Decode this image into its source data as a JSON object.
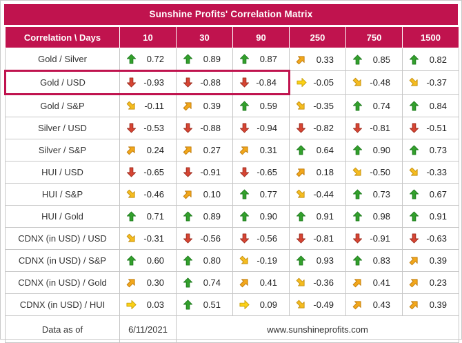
{
  "colors": {
    "header_bg": "#C0134E",
    "grid": "#c6c6c6",
    "arrow_up": "#33A02C",
    "arrow_down": "#D64533",
    "arrow_diag_up": "#F2A71B",
    "arrow_diag_down": "#F5BC1F",
    "arrow_right": "#FCD116",
    "highlight_border": "#C0134E"
  },
  "footer": {
    "label": "Data as of",
    "date": "6/11/2021",
    "website": "www.sunshineprofits.com"
  },
  "highlight": {
    "pair": "Gold / USD",
    "through_column": "90"
  },
  "chart_data": {
    "type": "table",
    "title": "Sunshine Profits' Correlation Matrix",
    "corner_label": "Correlation \\ Days",
    "day_columns": [
      "10",
      "30",
      "90",
      "250",
      "750",
      "1500"
    ],
    "rows": [
      {
        "pair": "Gold / Silver",
        "cells": [
          {
            "trend": "up",
            "value": 0.72
          },
          {
            "trend": "up",
            "value": 0.89
          },
          {
            "trend": "up",
            "value": 0.87
          },
          {
            "trend": "diag-up",
            "value": 0.33
          },
          {
            "trend": "up",
            "value": 0.85
          },
          {
            "trend": "up",
            "value": 0.82
          }
        ]
      },
      {
        "pair": "Gold / USD",
        "cells": [
          {
            "trend": "down",
            "value": -0.93
          },
          {
            "trend": "down",
            "value": -0.88
          },
          {
            "trend": "down",
            "value": -0.84
          },
          {
            "trend": "right",
            "value": -0.05
          },
          {
            "trend": "diag-down",
            "value": -0.48
          },
          {
            "trend": "diag-down",
            "value": -0.37
          }
        ]
      },
      {
        "pair": "Gold / S&P",
        "cells": [
          {
            "trend": "diag-down",
            "value": -0.11
          },
          {
            "trend": "diag-up",
            "value": 0.39
          },
          {
            "trend": "up",
            "value": 0.59
          },
          {
            "trend": "diag-down",
            "value": -0.35
          },
          {
            "trend": "up",
            "value": 0.74
          },
          {
            "trend": "up",
            "value": 0.84
          }
        ]
      },
      {
        "pair": "Silver / USD",
        "cells": [
          {
            "trend": "down",
            "value": -0.53
          },
          {
            "trend": "down",
            "value": -0.88
          },
          {
            "trend": "down",
            "value": -0.94
          },
          {
            "trend": "down",
            "value": -0.82
          },
          {
            "trend": "down",
            "value": -0.81
          },
          {
            "trend": "down",
            "value": -0.51
          }
        ]
      },
      {
        "pair": "Silver / S&P",
        "cells": [
          {
            "trend": "diag-up",
            "value": 0.24
          },
          {
            "trend": "diag-up",
            "value": 0.27
          },
          {
            "trend": "diag-up",
            "value": 0.31
          },
          {
            "trend": "up",
            "value": 0.64
          },
          {
            "trend": "up",
            "value": 0.9
          },
          {
            "trend": "up",
            "value": 0.73
          }
        ]
      },
      {
        "pair": "HUI / USD",
        "cells": [
          {
            "trend": "down",
            "value": -0.65
          },
          {
            "trend": "down",
            "value": -0.91
          },
          {
            "trend": "down",
            "value": -0.65
          },
          {
            "trend": "diag-up",
            "value": 0.18
          },
          {
            "trend": "diag-down",
            "value": -0.5
          },
          {
            "trend": "diag-down",
            "value": -0.33
          }
        ]
      },
      {
        "pair": "HUI / S&P",
        "cells": [
          {
            "trend": "diag-down",
            "value": -0.46
          },
          {
            "trend": "diag-up",
            "value": 0.1
          },
          {
            "trend": "up",
            "value": 0.77
          },
          {
            "trend": "diag-down",
            "value": -0.44
          },
          {
            "trend": "up",
            "value": 0.73
          },
          {
            "trend": "up",
            "value": 0.67
          }
        ]
      },
      {
        "pair": "HUI / Gold",
        "cells": [
          {
            "trend": "up",
            "value": 0.71
          },
          {
            "trend": "up",
            "value": 0.89
          },
          {
            "trend": "up",
            "value": 0.9
          },
          {
            "trend": "up",
            "value": 0.91
          },
          {
            "trend": "up",
            "value": 0.98
          },
          {
            "trend": "up",
            "value": 0.91
          }
        ]
      },
      {
        "pair": "CDNX (in USD) / USD",
        "cells": [
          {
            "trend": "diag-down",
            "value": -0.31
          },
          {
            "trend": "down",
            "value": -0.56
          },
          {
            "trend": "down",
            "value": -0.56
          },
          {
            "trend": "down",
            "value": -0.81
          },
          {
            "trend": "down",
            "value": -0.91
          },
          {
            "trend": "down",
            "value": -0.63
          }
        ]
      },
      {
        "pair": "CDNX (in USD) / S&P",
        "cells": [
          {
            "trend": "up",
            "value": 0.6
          },
          {
            "trend": "up",
            "value": 0.8
          },
          {
            "trend": "diag-down",
            "value": -0.19
          },
          {
            "trend": "up",
            "value": 0.93
          },
          {
            "trend": "up",
            "value": 0.83
          },
          {
            "trend": "diag-up",
            "value": 0.39
          }
        ]
      },
      {
        "pair": "CDNX (in USD) / Gold",
        "cells": [
          {
            "trend": "diag-up",
            "value": 0.3
          },
          {
            "trend": "up",
            "value": 0.74
          },
          {
            "trend": "diag-up",
            "value": 0.41
          },
          {
            "trend": "diag-down",
            "value": -0.36
          },
          {
            "trend": "diag-up",
            "value": 0.41
          },
          {
            "trend": "diag-up",
            "value": 0.23
          }
        ]
      },
      {
        "pair": "CDNX (in USD) / HUI",
        "cells": [
          {
            "trend": "right",
            "value": 0.03
          },
          {
            "trend": "up",
            "value": 0.51
          },
          {
            "trend": "right",
            "value": 0.09
          },
          {
            "trend": "diag-down",
            "value": -0.49
          },
          {
            "trend": "diag-up",
            "value": 0.43
          },
          {
            "trend": "diag-up",
            "value": 0.39
          }
        ]
      }
    ]
  }
}
